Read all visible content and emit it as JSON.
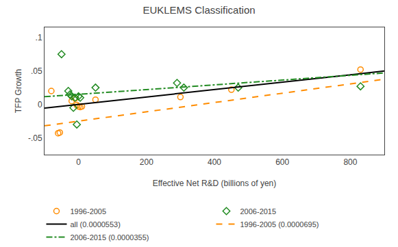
{
  "chart_data": {
    "type": "scatter",
    "title": "EUKLEMS Classification",
    "xlabel": "Effective Net R&D (billions of yen)",
    "ylabel": "TFP Growth",
    "xlim": [
      -100,
      900
    ],
    "ylim": [
      -0.075,
      0.115
    ],
    "xticks": [
      0,
      200,
      400,
      600,
      800
    ],
    "yticks": [
      {
        "value": -0.05,
        "label": "-.05"
      },
      0,
      {
        "value": 0.05,
        "label": ".05"
      },
      {
        "value": 0.1,
        "label": ".1"
      }
    ],
    "grid": false,
    "legend": "bottom",
    "series": [
      {
        "name": "1996-2005",
        "type": "scatter",
        "marker": "circle-open",
        "color": "#FF8C00",
        "x": [
          -80,
          -60,
          -55,
          -20,
          -10,
          -5,
          0,
          5,
          10,
          50,
          300,
          450,
          830
        ],
        "values": [
          0.02,
          -0.043,
          -0.042,
          0.005,
          0.009,
          -0.001,
          -0.003,
          -0.004,
          -0.003,
          0.007,
          0.011,
          0.022,
          0.052
        ]
      },
      {
        "name": "2006-2015",
        "type": "scatter",
        "marker": "diamond-open",
        "color": "#228B22",
        "x": [
          -50,
          -30,
          -25,
          -20,
          -15,
          -10,
          -5,
          0,
          5,
          50,
          290,
          310,
          470,
          830
        ],
        "values": [
          0.075,
          0.02,
          0.015,
          0.012,
          -0.005,
          0.01,
          -0.03,
          0.012,
          0.01,
          0.025,
          0.032,
          0.025,
          0.025,
          0.027
        ]
      },
      {
        "name": "all (0.0000553)",
        "type": "line",
        "line_style": "solid",
        "color": "#000000",
        "x": [
          -100,
          900
        ],
        "values": [
          -0.00553,
          0.04977
        ]
      },
      {
        "name": "1996-2005 (0.0000695)",
        "type": "line",
        "line_style": "dash",
        "color": "#FF8C00",
        "x": [
          -100,
          900
        ],
        "values": [
          -0.03195,
          0.03755
        ]
      },
      {
        "name": "2006-2015 (0.0000355)",
        "type": "line",
        "line_style": "dashdot",
        "color": "#228B22",
        "x": [
          -100,
          900
        ],
        "values": [
          0.01145,
          0.04695
        ]
      }
    ]
  }
}
